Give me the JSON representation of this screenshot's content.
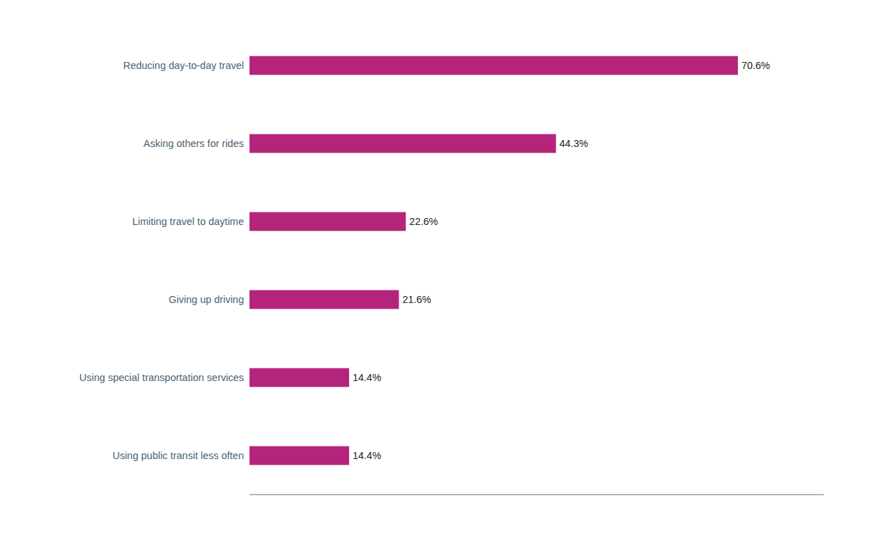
{
  "chart_data": {
    "type": "bar",
    "orientation": "horizontal",
    "categories": [
      "Using public transit less often",
      "Using special transportation services",
      "Giving up driving",
      "Limiting travel to daytime",
      "Asking others for rides",
      "Reducing day-to-day travel"
    ],
    "values": [
      14.4,
      14.4,
      21.6,
      22.6,
      44.3,
      70.6
    ],
    "value_labels": [
      "14.4%",
      "14.4%",
      "21.6%",
      "22.6%",
      "44.3%",
      "70.6%"
    ],
    "color": "#b5247b",
    "xlim": [
      0,
      83
    ],
    "data_labels": true,
    "tick_labels": "y",
    "grid": false
  }
}
